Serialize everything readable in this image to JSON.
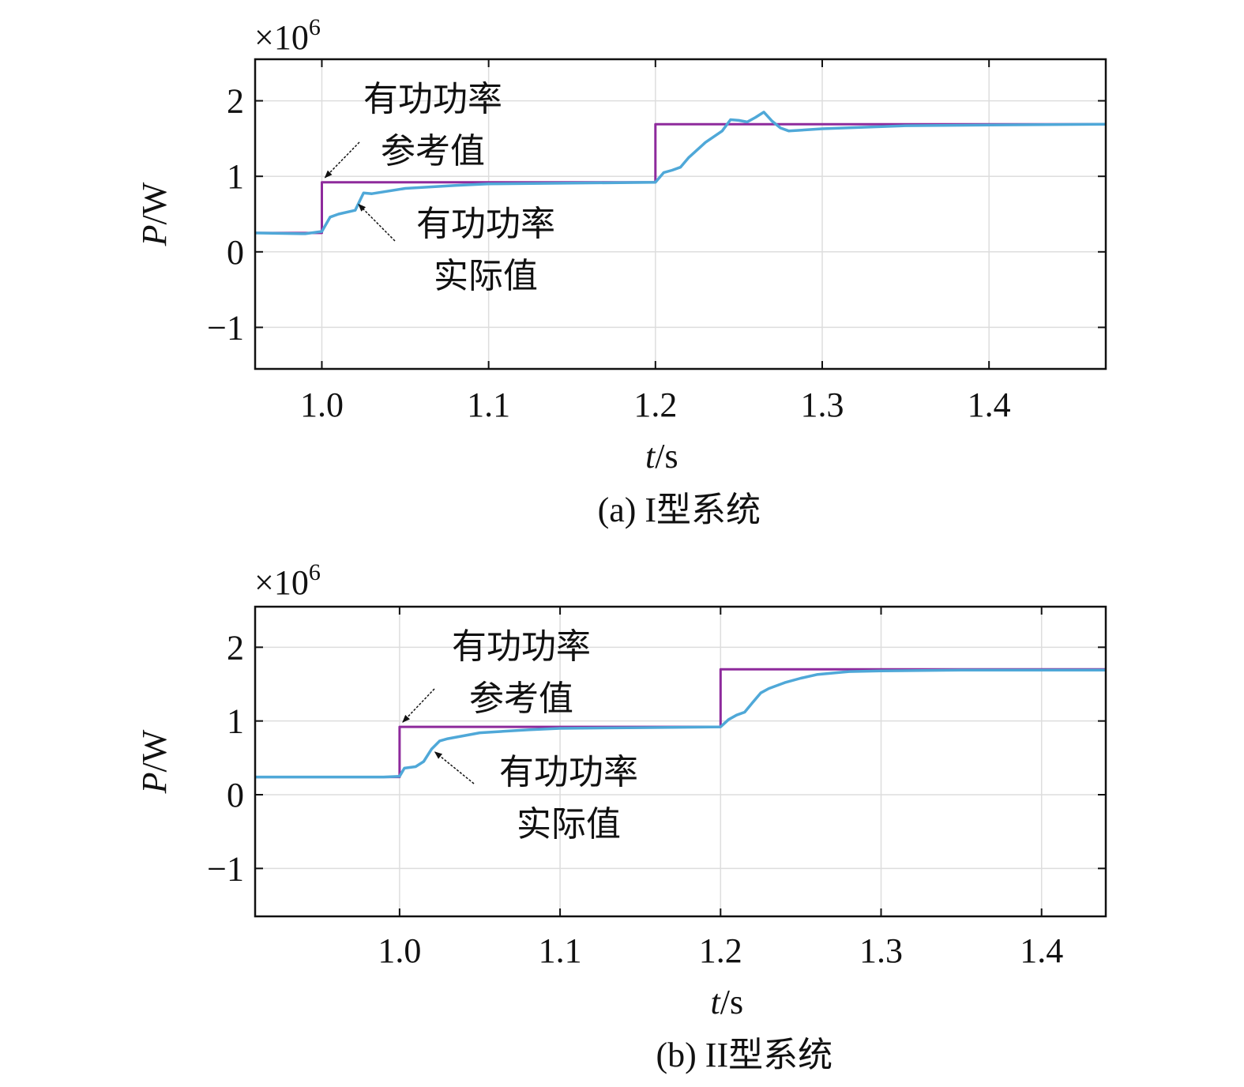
{
  "colors": {
    "reference": "#8e2a9c",
    "actual": "#4fa8d8",
    "grid": "#dddddd",
    "axis": "#111111"
  },
  "chart_data": [
    {
      "type": "line",
      "caption": "(a) I型系统",
      "multiplier": "×10",
      "multiplier_exp": "6",
      "xlabel_var": "t",
      "xlabel_unit": "/s",
      "ylabel_var": "P",
      "ylabel_unit": "/W",
      "xlim": [
        0.96,
        1.47
      ],
      "ylim": [
        -1.55,
        2.55
      ],
      "xticks": [
        1.0,
        1.1,
        1.2,
        1.3,
        1.4
      ],
      "xtick_labels": [
        "1.0",
        "1.1",
        "1.2",
        "1.3",
        "1.4"
      ],
      "yticks": [
        -1,
        0,
        1,
        2
      ],
      "ytick_labels": [
        "−1",
        "0",
        "1",
        "2"
      ],
      "grid": true,
      "series": [
        {
          "key": "reference",
          "x": [
            0.96,
            1.0,
            1.0,
            1.2,
            1.2,
            1.47
          ],
          "y": [
            0.25,
            0.25,
            0.92,
            0.92,
            1.69,
            1.69
          ]
        },
        {
          "key": "actual",
          "x": [
            0.96,
            0.99,
            1.0,
            1.005,
            1.01,
            1.02,
            1.025,
            1.03,
            1.05,
            1.08,
            1.1,
            1.15,
            1.2,
            1.205,
            1.21,
            1.215,
            1.22,
            1.23,
            1.24,
            1.245,
            1.25,
            1.255,
            1.26,
            1.265,
            1.27,
            1.275,
            1.28,
            1.3,
            1.35,
            1.4,
            1.47
          ],
          "y": [
            0.25,
            0.24,
            0.27,
            0.46,
            0.5,
            0.55,
            0.78,
            0.77,
            0.84,
            0.88,
            0.9,
            0.91,
            0.92,
            1.05,
            1.08,
            1.12,
            1.25,
            1.45,
            1.6,
            1.75,
            1.74,
            1.72,
            1.78,
            1.85,
            1.73,
            1.64,
            1.6,
            1.63,
            1.67,
            1.68,
            1.69
          ]
        }
      ],
      "annotations": [
        {
          "lines": [
            "有功功率",
            "参考值"
          ],
          "target": [
            1.0,
            0.92
          ]
        },
        {
          "lines": [
            "有功功率",
            "实际值"
          ],
          "target": [
            1.022,
            0.63
          ]
        }
      ]
    },
    {
      "type": "line",
      "caption": "(b) II型系统",
      "multiplier": "×10",
      "multiplier_exp": "6",
      "xlabel_var": "t",
      "xlabel_unit": "/s",
      "ylabel_var": "P",
      "ylabel_unit": "/W",
      "xlim": [
        0.91,
        1.44
      ],
      "ylim": [
        -1.65,
        2.55
      ],
      "xticks": [
        1.0,
        1.1,
        1.2,
        1.3,
        1.4
      ],
      "xtick_labels": [
        "1.0",
        "1.1",
        "1.2",
        "1.3",
        "1.4"
      ],
      "yticks": [
        -1,
        0,
        1,
        2
      ],
      "ytick_labels": [
        "−1",
        "0",
        "1",
        "2"
      ],
      "grid": true,
      "series": [
        {
          "key": "reference",
          "x": [
            0.91,
            1.0,
            1.0,
            1.2,
            1.2,
            1.44
          ],
          "y": [
            0.24,
            0.24,
            0.92,
            0.92,
            1.7,
            1.7
          ]
        },
        {
          "key": "actual",
          "x": [
            0.91,
            0.99,
            1.0,
            1.003,
            1.01,
            1.015,
            1.02,
            1.025,
            1.03,
            1.05,
            1.08,
            1.1,
            1.15,
            1.2,
            1.205,
            1.21,
            1.215,
            1.22,
            1.225,
            1.23,
            1.24,
            1.25,
            1.26,
            1.28,
            1.3,
            1.35,
            1.44
          ],
          "y": [
            0.24,
            0.24,
            0.25,
            0.36,
            0.38,
            0.45,
            0.62,
            0.73,
            0.76,
            0.84,
            0.88,
            0.9,
            0.91,
            0.92,
            1.02,
            1.08,
            1.12,
            1.25,
            1.38,
            1.44,
            1.52,
            1.58,
            1.63,
            1.67,
            1.68,
            1.69,
            1.69
          ]
        }
      ],
      "annotations": [
        {
          "lines": [
            "有功功率",
            "参考值"
          ],
          "target": [
            1.0,
            0.92
          ]
        },
        {
          "lines": [
            "有功功率",
            "实际值"
          ],
          "target": [
            1.022,
            0.58
          ]
        }
      ]
    }
  ]
}
